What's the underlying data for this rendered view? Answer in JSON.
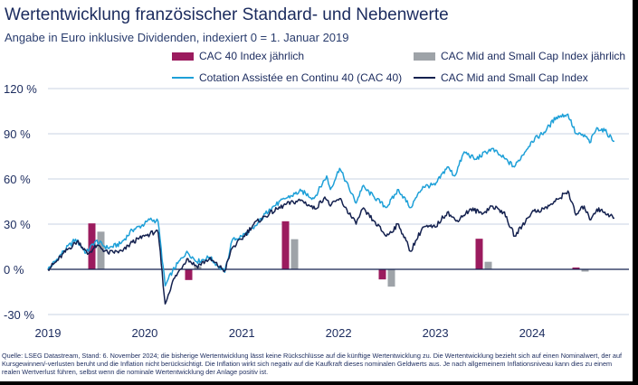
{
  "title": "Wertentwicklung französischer Standard- und Nebenwerte",
  "subtitle": "Angabe in Euro inklusive Dividenden, indexiert 0 = 1. Januar 2019",
  "legend": [
    {
      "label": "CAC 40 Index jährlich",
      "kind": "bar",
      "color": "#9b1b5e"
    },
    {
      "label": "CAC Mid and Small Cap Index jährlich",
      "kind": "bar",
      "color": "#9ea3a8"
    },
    {
      "label": "Cotation Assistée en Continu 40 (CAC 40)",
      "kind": "line",
      "color": "#1ea0d8"
    },
    {
      "label": "CAC Mid and Small Cap Index",
      "kind": "line",
      "color": "#14214f"
    }
  ],
  "source": "Quelle: LSEG Datastream, Stand: 6. November 2024; die bisherige Wertentwicklung lässt keine Rückschlüsse auf die künftige Wertentwicklung zu. Die Wertentwicklung bezieht sich auf einen Nominalwert, der auf Kursgewinnen/-verlusten beruht und die Inflation nicht berücksichtigt. Die Inflation wirkt sich negativ auf die Kaufkraft dieses nominalen Geldwerts aus. Je nach allgemeinem Inflationsniveau kann dies zu einem realen Wertverlust führen, selbst wenn die nominale Wertentwicklung der Anlage positiv ist.",
  "chart_data": {
    "type": "line",
    "xlabel": "",
    "ylabel": "",
    "ylim": [
      -30,
      120
    ],
    "xlim": [
      "2019-01-01",
      "2024-12-31"
    ],
    "grid": true,
    "y_ticks": [
      "-30 %",
      "0 %",
      "30 %",
      "60 %",
      "90 %",
      "120 %"
    ],
    "y_tick_values": [
      -30,
      0,
      30,
      60,
      90,
      120
    ],
    "x_ticks": [
      "2019",
      "2020",
      "2021",
      "2022",
      "2023",
      "2024"
    ],
    "x_tick_dates": [
      "2019-01-01",
      "2020-01-01",
      "2021-01-01",
      "2022-01-01",
      "2023-01-01",
      "2024-01-01"
    ],
    "bars": {
      "series": [
        {
          "name": "CAC 40 Index jährlich",
          "color": "#9b1b5e",
          "values": [
            30.5,
            -7.1,
            31.9,
            -6.7,
            20.3,
            1.2
          ]
        },
        {
          "name": "CAC Mid and Small Cap Index jährlich",
          "color": "#9ea3a8",
          "values": [
            25.0,
            2.0,
            20.0,
            -11.5,
            5.0,
            -1.5
          ]
        }
      ]
    },
    "series": [
      {
        "name": "Cotation Assistée en Continu 40 (CAC 40)",
        "color": "#1ea0d8",
        "points": [
          [
            "2019-01-01",
            0
          ],
          [
            "2019-02-01",
            6
          ],
          [
            "2019-03-01",
            12
          ],
          [
            "2019-04-15",
            20
          ],
          [
            "2019-05-25",
            11
          ],
          [
            "2019-07-01",
            19
          ],
          [
            "2019-08-15",
            14
          ],
          [
            "2019-10-01",
            17
          ],
          [
            "2019-11-15",
            26
          ],
          [
            "2019-12-31",
            30
          ],
          [
            "2020-01-20",
            33
          ],
          [
            "2020-02-20",
            32
          ],
          [
            "2020-03-18",
            -11
          ],
          [
            "2020-04-15",
            -1
          ],
          [
            "2020-06-08",
            12
          ],
          [
            "2020-07-15",
            5
          ],
          [
            "2020-09-01",
            8
          ],
          [
            "2020-10-29",
            -2
          ],
          [
            "2020-11-25",
            19
          ],
          [
            "2020-12-31",
            22
          ],
          [
            "2021-02-15",
            27
          ],
          [
            "2021-04-15",
            40
          ],
          [
            "2021-06-15",
            47
          ],
          [
            "2021-08-13",
            52
          ],
          [
            "2021-09-30",
            47
          ],
          [
            "2021-11-17",
            62
          ],
          [
            "2021-12-01",
            53
          ],
          [
            "2022-01-05",
            67
          ],
          [
            "2022-03-08",
            44
          ],
          [
            "2022-04-01",
            55
          ],
          [
            "2022-05-15",
            48
          ],
          [
            "2022-06-30",
            41
          ],
          [
            "2022-08-15",
            53
          ],
          [
            "2022-09-29",
            41
          ],
          [
            "2022-11-15",
            55
          ],
          [
            "2022-12-31",
            56
          ],
          [
            "2023-02-15",
            68
          ],
          [
            "2023-03-15",
            62
          ],
          [
            "2023-04-20",
            78
          ],
          [
            "2023-06-01",
            73
          ],
          [
            "2023-07-31",
            80
          ],
          [
            "2023-09-01",
            76
          ],
          [
            "2023-10-26",
            68
          ],
          [
            "2023-12-31",
            85
          ],
          [
            "2024-02-15",
            91
          ],
          [
            "2024-04-01",
            101
          ],
          [
            "2024-05-15",
            103
          ],
          [
            "2024-06-14",
            90
          ],
          [
            "2024-07-25",
            88
          ],
          [
            "2024-08-05",
            84
          ],
          [
            "2024-09-01",
            94
          ],
          [
            "2024-10-01",
            92
          ],
          [
            "2024-11-06",
            85
          ]
        ]
      },
      {
        "name": "CAC Mid and Small Cap Index",
        "color": "#14214f",
        "points": [
          [
            "2019-01-01",
            0
          ],
          [
            "2019-02-01",
            5
          ],
          [
            "2019-03-15",
            13
          ],
          [
            "2019-04-25",
            19
          ],
          [
            "2019-05-30",
            10
          ],
          [
            "2019-07-05",
            16
          ],
          [
            "2019-08-15",
            11
          ],
          [
            "2019-10-10",
            12
          ],
          [
            "2019-11-15",
            18
          ],
          [
            "2019-12-31",
            22
          ],
          [
            "2020-02-10",
            25
          ],
          [
            "2020-02-21",
            24
          ],
          [
            "2020-03-18",
            -23
          ],
          [
            "2020-04-15",
            -8
          ],
          [
            "2020-06-08",
            7
          ],
          [
            "2020-07-15",
            2
          ],
          [
            "2020-09-01",
            7
          ],
          [
            "2020-10-29",
            -1
          ],
          [
            "2020-11-25",
            14
          ],
          [
            "2020-12-31",
            20
          ],
          [
            "2021-02-15",
            30
          ],
          [
            "2021-04-15",
            37
          ],
          [
            "2021-06-15",
            43
          ],
          [
            "2021-08-13",
            46
          ],
          [
            "2021-10-04",
            40
          ],
          [
            "2021-11-10",
            48
          ],
          [
            "2021-12-01",
            42
          ],
          [
            "2022-01-05",
            47
          ],
          [
            "2022-03-08",
            30
          ],
          [
            "2022-04-01",
            40
          ],
          [
            "2022-05-15",
            32
          ],
          [
            "2022-06-30",
            22
          ],
          [
            "2022-08-15",
            30
          ],
          [
            "2022-09-29",
            12
          ],
          [
            "2022-11-15",
            28
          ],
          [
            "2022-12-31",
            28
          ],
          [
            "2023-02-15",
            38
          ],
          [
            "2023-03-20",
            32
          ],
          [
            "2023-05-15",
            40
          ],
          [
            "2023-06-30",
            37
          ],
          [
            "2023-08-01",
            42
          ],
          [
            "2023-09-15",
            38
          ],
          [
            "2023-10-27",
            22
          ],
          [
            "2023-12-31",
            38
          ],
          [
            "2024-02-15",
            40
          ],
          [
            "2024-03-28",
            45
          ],
          [
            "2024-05-15",
            52
          ],
          [
            "2024-06-14",
            36
          ],
          [
            "2024-07-15",
            42
          ],
          [
            "2024-08-05",
            33
          ],
          [
            "2024-09-01",
            40
          ],
          [
            "2024-10-01",
            38
          ],
          [
            "2024-11-06",
            34
          ]
        ]
      }
    ]
  }
}
